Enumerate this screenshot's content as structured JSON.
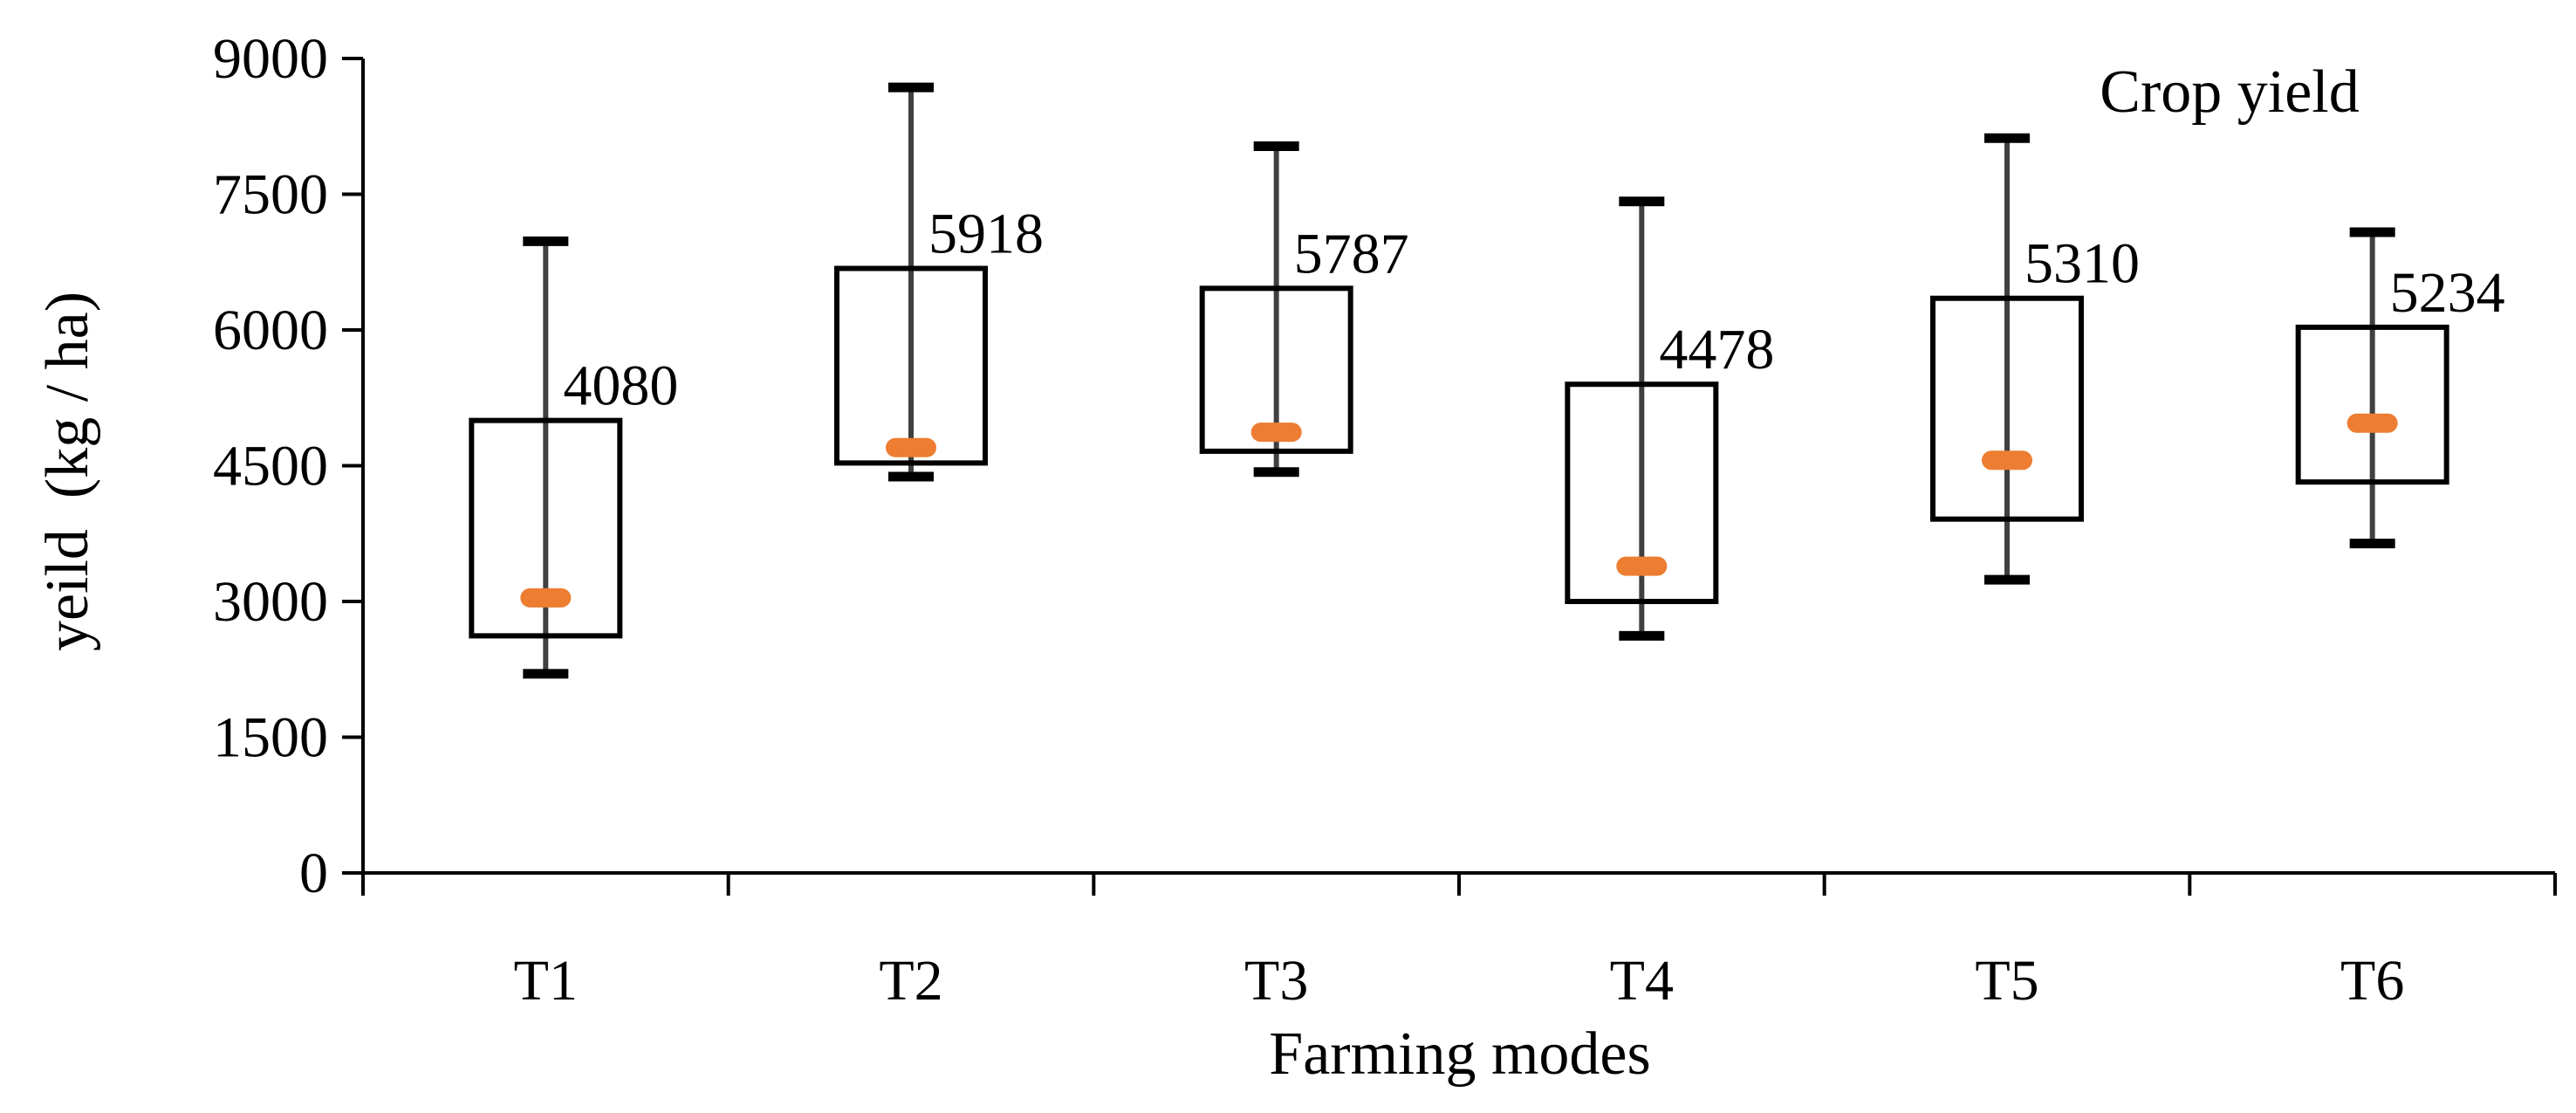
{
  "chart_data": {
    "type": "boxplot",
    "title": "Crop yield",
    "xlabel": "Farming modes",
    "ylabel": "yeild  (kg / ha)",
    "ylim": [
      0,
      9000
    ],
    "yticks": [
      "0",
      "1500",
      "3000",
      "4500",
      "6000",
      "7500",
      "9000"
    ],
    "ytick_values": [
      0,
      1500,
      3000,
      4500,
      6000,
      7500,
      9000
    ],
    "categories": [
      "T1",
      "T2",
      "T3",
      "T4",
      "T5",
      "T6"
    ],
    "series": [
      {
        "category": "T1",
        "min": 2200,
        "q1": 2620,
        "median": 3040,
        "q3": 5000,
        "max": 6980,
        "label": "4080"
      },
      {
        "category": "T2",
        "min": 4380,
        "q1": 4530,
        "median": 4700,
        "q3": 6680,
        "max": 8680,
        "label": "5918"
      },
      {
        "category": "T3",
        "min": 4430,
        "q1": 4660,
        "median": 4870,
        "q3": 6460,
        "max": 8030,
        "label": "5787"
      },
      {
        "category": "T4",
        "min": 2620,
        "q1": 3000,
        "median": 3390,
        "q3": 5400,
        "max": 7420,
        "label": "4478"
      },
      {
        "category": "T5",
        "min": 3240,
        "q1": 3910,
        "median": 4560,
        "q3": 6350,
        "max": 8120,
        "label": "5310"
      },
      {
        "category": "T6",
        "min": 3640,
        "q1": 4320,
        "median": 4970,
        "q3": 6030,
        "max": 7080,
        "label": "5234"
      }
    ],
    "colors": {
      "box": "#000000",
      "whisker": "#404040",
      "cap": "#000000",
      "median": "#ED7D31",
      "axis": "#000000"
    }
  }
}
